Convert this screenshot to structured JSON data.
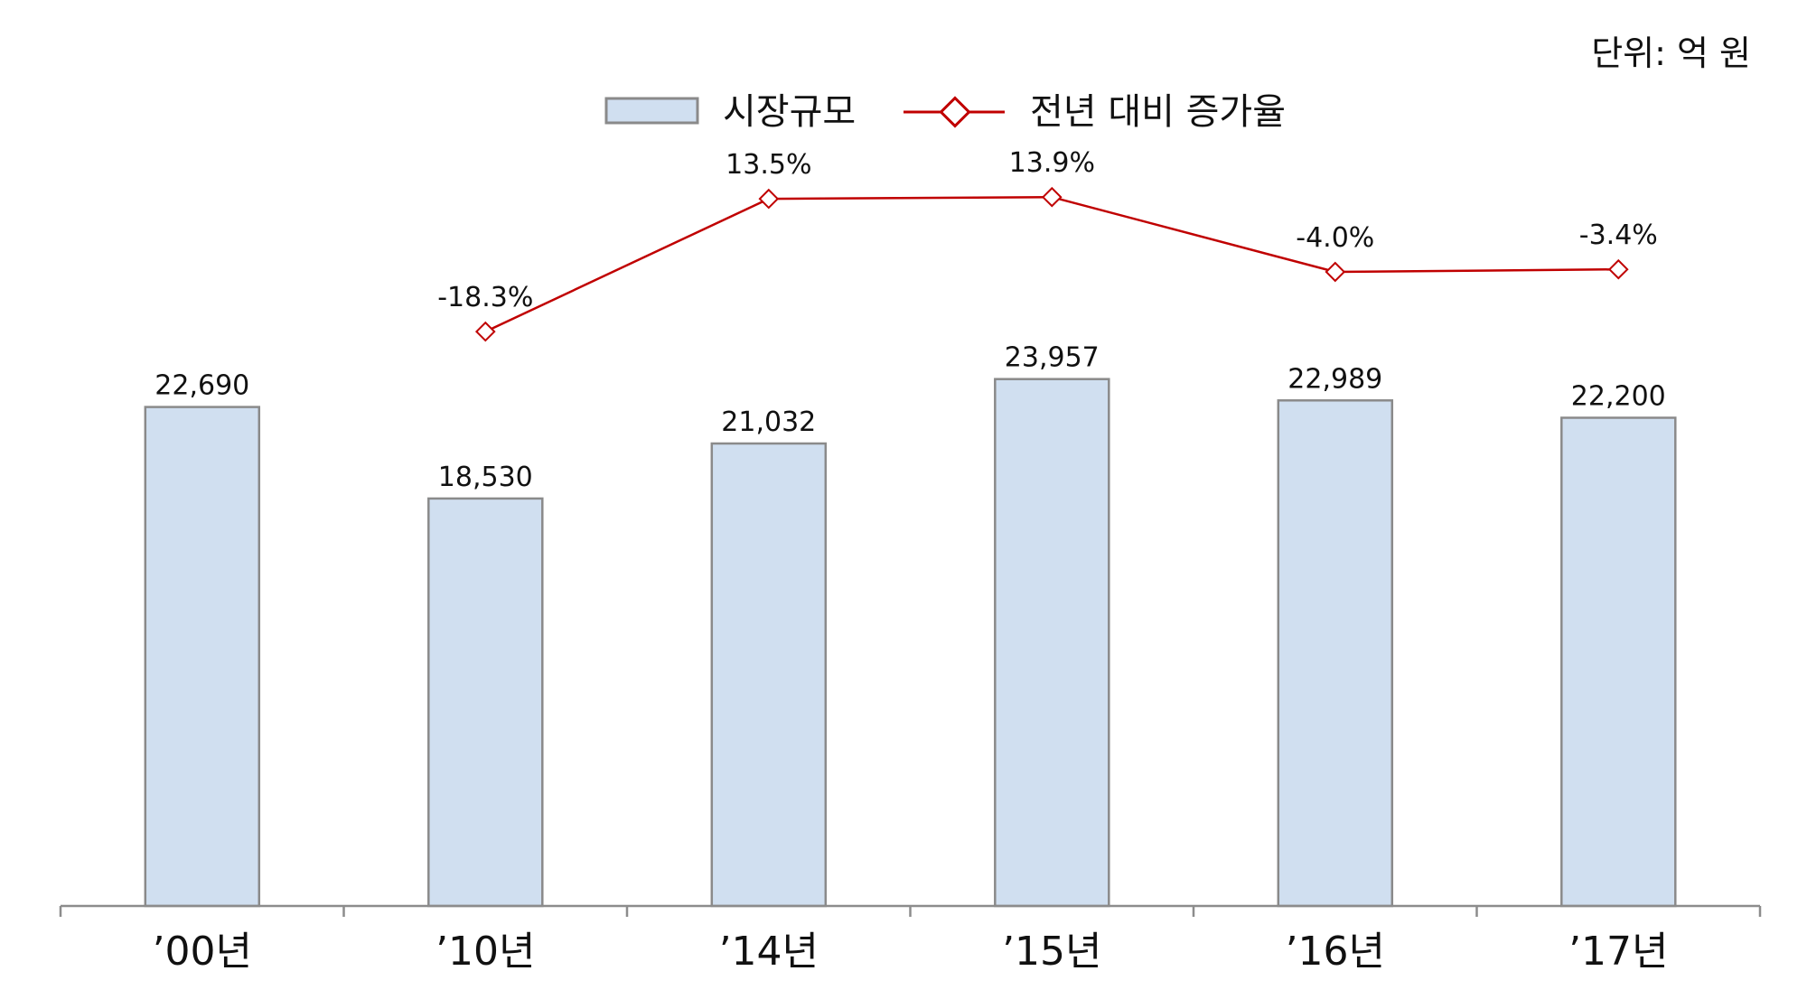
{
  "unit_note": "단위: 억 원",
  "legend": {
    "bar_label": "시장규모",
    "line_label": "전년 대비 증가율"
  },
  "colors": {
    "bar_fill": "#d0dff0",
    "bar_stroke": "#8a8a8a",
    "line": "#c00000",
    "axis": "#8c8c8c",
    "text": "#111111"
  },
  "chart_data": {
    "type": "bar",
    "categories": [
      "’00년",
      "’10년",
      "’14년",
      "’15년",
      "’16년",
      "’17년"
    ],
    "series": [
      {
        "name": "시장규모",
        "type": "bar",
        "values": [
          22690,
          18530,
          21032,
          23957,
          22989,
          22200
        ],
        "value_labels": [
          "22,690",
          "18,530",
          "21,032",
          "23,957",
          "22,989",
          "22,200"
        ]
      },
      {
        "name": "전년 대비 증가율",
        "type": "line",
        "values": [
          null,
          -18.3,
          13.5,
          13.9,
          -4.0,
          -3.4
        ],
        "value_labels": [
          "",
          "-18.3%",
          "13.5%",
          "13.9%",
          "-4.0%",
          "-3.4%"
        ]
      }
    ],
    "ylim": [
      0,
      26000
    ],
    "y2lim": [
      -60,
      20
    ],
    "grid": false,
    "legend_position": "top-center"
  }
}
